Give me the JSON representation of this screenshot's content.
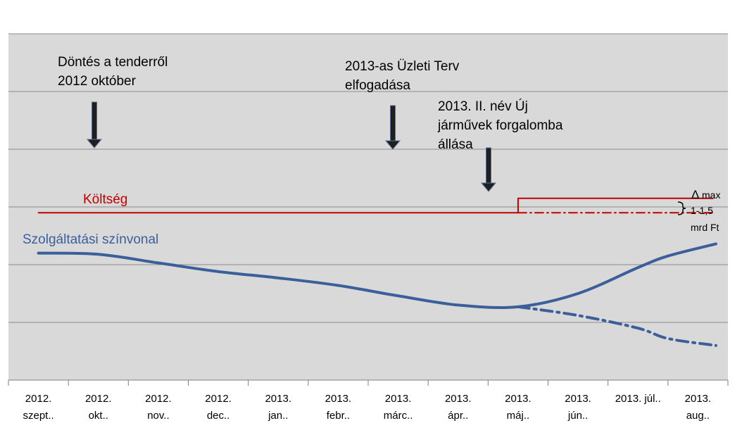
{
  "chart_data": {
    "type": "line",
    "title": "",
    "xlabel": "",
    "ylabel": "",
    "grid": true,
    "y_axis_labels_shown": false,
    "plot_background": "#d9d9d9",
    "categories": [
      [
        "2012.",
        "szept.."
      ],
      [
        "2012.",
        "okt.."
      ],
      [
        "2012.",
        "nov.."
      ],
      [
        "2012.",
        "dec.."
      ],
      [
        "2013.",
        "jan.."
      ],
      [
        "2013.",
        "febr.."
      ],
      [
        "2013.",
        "márc.."
      ],
      [
        "2013.",
        "ápr.."
      ],
      [
        "2013.",
        "máj.."
      ],
      [
        "2013.",
        "jún.."
      ],
      [
        "2013. júl..",
        ""
      ],
      [
        "2013.",
        "aug.."
      ]
    ],
    "ylim": [
      0,
      6
    ],
    "series": [
      {
        "name": "Költség",
        "color": "#c00000",
        "style": "solid",
        "x": [
          0,
          8,
          8,
          11.25
        ],
        "values": [
          2.9,
          2.9,
          3.15,
          3.15
        ]
      },
      {
        "name": "",
        "color": "#c00000",
        "style": "dashdot",
        "x": [
          8,
          11.25
        ],
        "values": [
          2.9,
          2.9
        ]
      },
      {
        "name": "Szolgáltatási színvonal",
        "color": "#3a5f9a",
        "style": "solid",
        "x": [
          0,
          1,
          2,
          3,
          4,
          5,
          6,
          7,
          8,
          9,
          10,
          10.5,
          11.3
        ],
        "values": [
          2.2,
          2.18,
          2.03,
          1.88,
          1.77,
          1.64,
          1.46,
          1.3,
          1.27,
          1.5,
          1.95,
          2.15,
          2.36
        ]
      },
      {
        "name": "",
        "color": "#3a5f9a",
        "style": "dashdot",
        "x": [
          8,
          9,
          10,
          10.5,
          11.3
        ],
        "values": [
          1.27,
          1.12,
          0.9,
          0.72,
          0.6
        ]
      }
    ],
    "annotations": [
      {
        "lines": [
          "Döntés a tenderről",
          "2012 október"
        ],
        "category_index": 1
      },
      {
        "lines": [
          "2013-as Üzleti Terv",
          "elfogadása"
        ],
        "category_index": 6
      },
      {
        "lines": [
          "2013. II. név Új",
          "járművek forgalomba",
          "állása"
        ],
        "category_index": 8
      }
    ],
    "delta_label": {
      "symbol": "Δ",
      "lines": [
        "max",
        "1-1,5",
        "mrd Ft"
      ]
    }
  }
}
